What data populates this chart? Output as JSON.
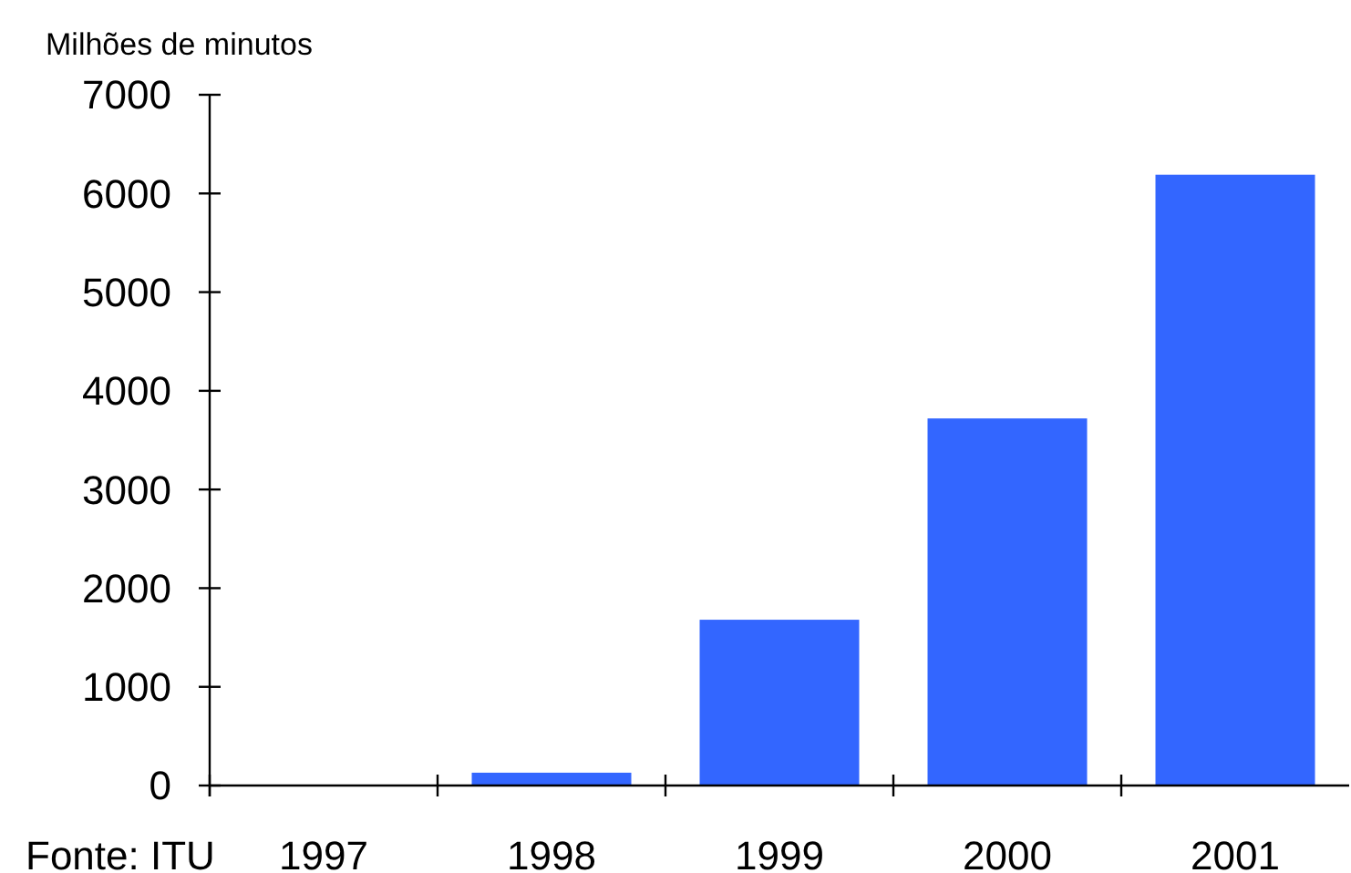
{
  "chart_data": {
    "type": "bar",
    "ylabel": "Milhões de minutos",
    "annotations": [
      "Fonte: ITU"
    ],
    "categories": [
      "1997",
      "1998",
      "1999",
      "2000",
      "2001"
    ],
    "values": [
      0,
      130,
      1680,
      3720,
      6190
    ],
    "color": "#3366ff",
    "ylim": [
      0,
      7000
    ],
    "yticks": [
      0,
      1000,
      2000,
      3000,
      4000,
      5000,
      6000,
      7000
    ],
    "grid": false
  }
}
